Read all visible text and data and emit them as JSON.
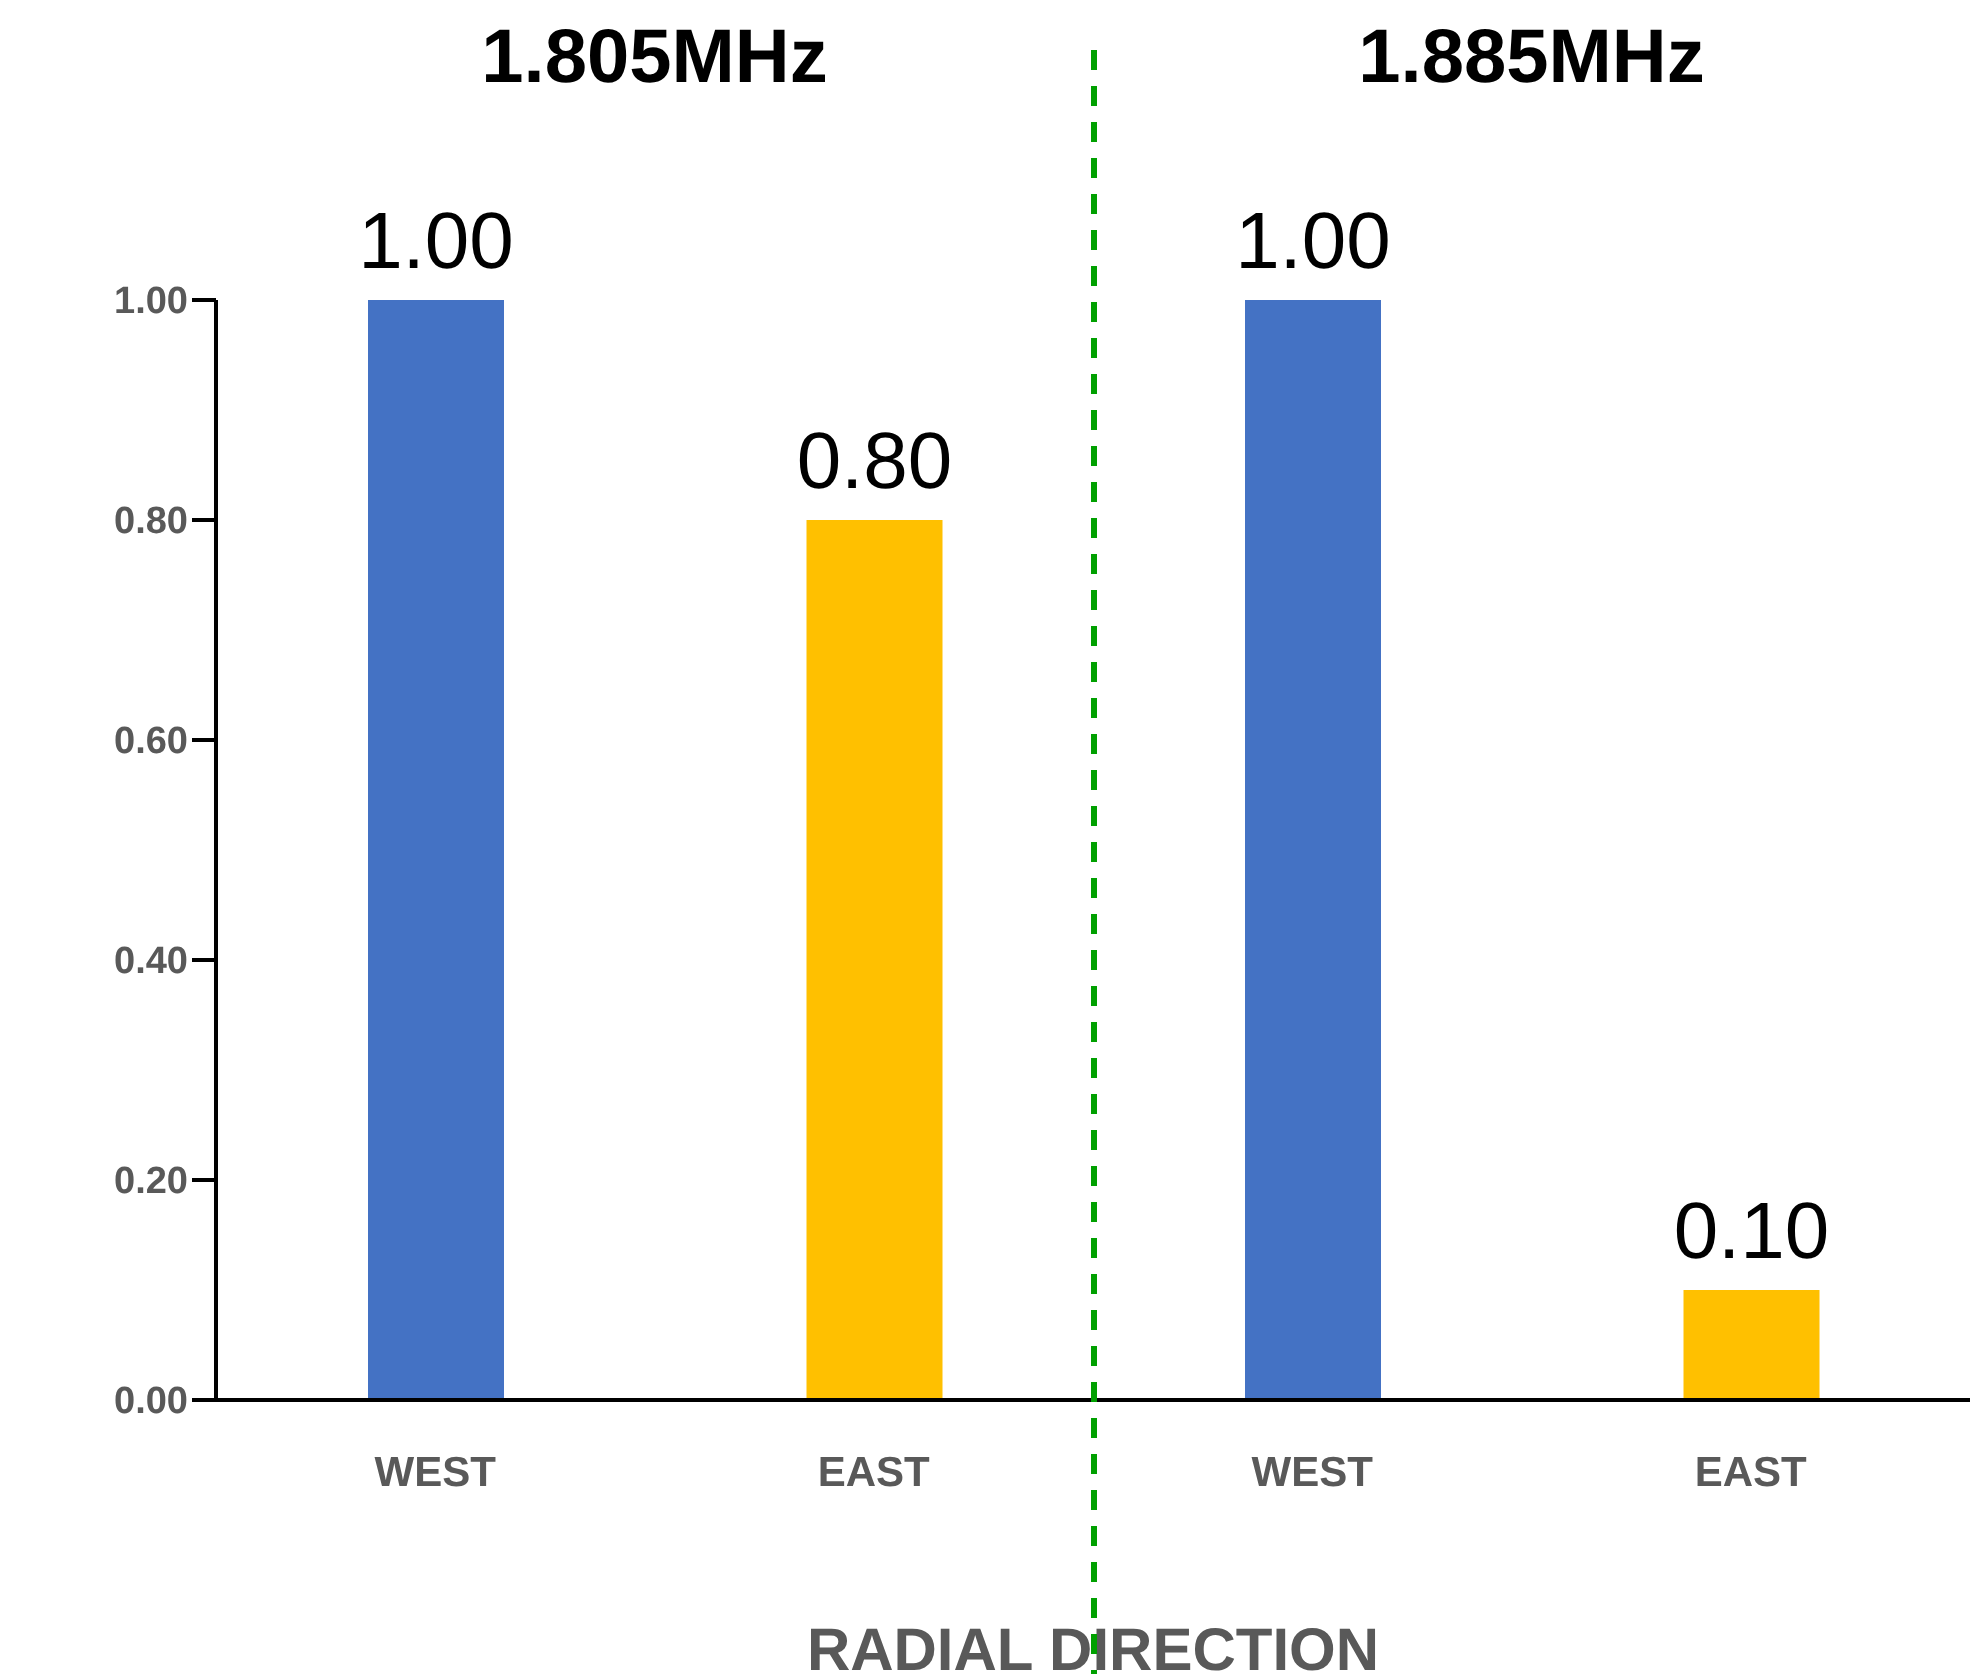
{
  "chart_data": {
    "type": "bar",
    "categories": [
      "WEST",
      "EAST",
      "WEST",
      "EAST"
    ],
    "values": [
      1.0,
      0.8,
      1.0,
      0.1
    ],
    "colors": [
      "#4472c4",
      "#ffc000",
      "#4472c4",
      "#ffc000"
    ],
    "value_labels": [
      "1.00",
      "0.80",
      "1.00",
      "0.10"
    ],
    "xlabel": "RADIAL DIRECTION",
    "ylim": [
      0,
      1
    ],
    "yticks": [
      {
        "value": 0,
        "label": "0.00"
      },
      {
        "value": 0.2,
        "label": "0.20"
      },
      {
        "value": 0.4,
        "label": "0.40"
      },
      {
        "value": 0.6,
        "label": "0.60"
      },
      {
        "value": 0.8,
        "label": "0.80"
      },
      {
        "value": 1,
        "label": "1.00"
      }
    ],
    "annotations": [
      "1.805MHz",
      "1.885MHz"
    ],
    "grid": false,
    "legend": false
  }
}
